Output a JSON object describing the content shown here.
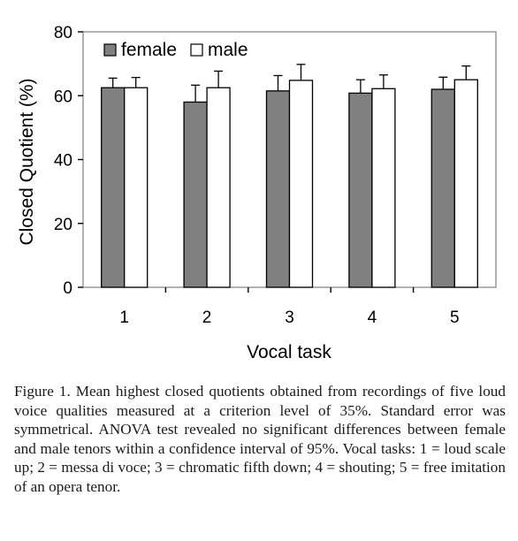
{
  "chart_data": {
    "type": "bar",
    "categories": [
      "1",
      "2",
      "3",
      "4",
      "5"
    ],
    "series": [
      {
        "name": "female",
        "values": [
          62.5,
          58,
          61.5,
          60.8,
          62
        ],
        "error": [
          3,
          5.3,
          4.8,
          4.2,
          3.8
        ],
        "color": "#808080"
      },
      {
        "name": "male",
        "values": [
          62.5,
          62.5,
          64.8,
          62.2,
          65
        ],
        "error": [
          3.2,
          5.2,
          5,
          4.3,
          4.3
        ],
        "color": "#ffffff"
      }
    ],
    "xlabel": "Vocal task",
    "ylabel": "Closed Quotient (%)",
    "ylim": [
      0,
      80
    ],
    "yticks": [
      "0",
      "20",
      "40",
      "60",
      "80"
    ],
    "legend_position": "top-left",
    "grid": false
  },
  "caption": "Figure 1. Mean highest closed quotients obtained from recordings of five loud voice qualities measured at a criterion level of 35%. Standard error was symmetrical. ANOVA test revealed no significant differences between female and male tenors within a confidence interval of 95%. Vocal tasks: 1 = loud scale up; 2 = messa di voce; 3 = chromatic fifth down; 4 = shouting; 5 = free imitation of an opera tenor."
}
